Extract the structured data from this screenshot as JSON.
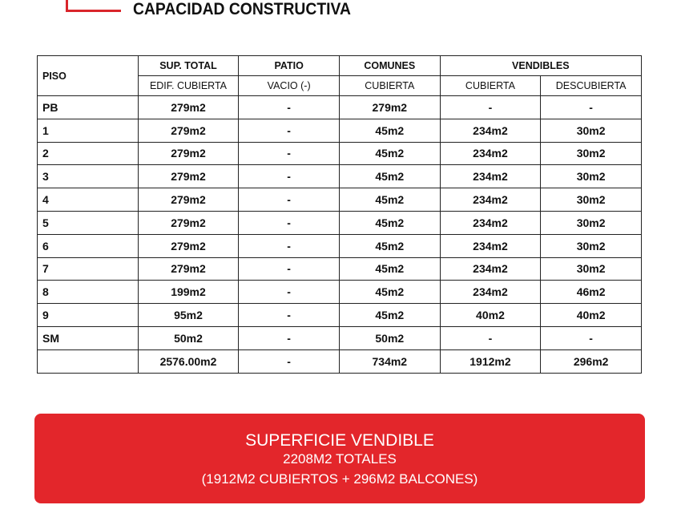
{
  "title": "CAPACIDAD CONSTRUCTIVA",
  "table": {
    "headers": {
      "piso": "PISO",
      "sup_total": "SUP. TOTAL",
      "patio": "PATIO",
      "comunes": "COMUNES",
      "vendibles": "VENDIBLES"
    },
    "subheaders": {
      "edif_cubierta": "EDIF. CUBIERTA",
      "vacio": "VACIO (-)",
      "comunes_cubierta": "CUBIERTA",
      "vend_cubierta": "CUBIERTA",
      "vend_descubierta": "DESCUBIERTA"
    },
    "rows": [
      [
        "PB",
        "279m2",
        "-",
        "279m2",
        "-",
        "-"
      ],
      [
        "1",
        "279m2",
        "-",
        "45m2",
        "234m2",
        "30m2"
      ],
      [
        "2",
        "279m2",
        "-",
        "45m2",
        "234m2",
        "30m2"
      ],
      [
        "3",
        "279m2",
        "-",
        "45m2",
        "234m2",
        "30m2"
      ],
      [
        "4",
        "279m2",
        "-",
        "45m2",
        "234m2",
        "30m2"
      ],
      [
        "5",
        "279m2",
        "-",
        "45m2",
        "234m2",
        "30m2"
      ],
      [
        "6",
        "279m2",
        "-",
        "45m2",
        "234m2",
        "30m2"
      ],
      [
        "7",
        "279m2",
        "-",
        "45m2",
        "234m2",
        "30m2"
      ],
      [
        "8",
        "199m2",
        "-",
        "45m2",
        "234m2",
        "46m2"
      ],
      [
        "9",
        "95m2",
        "-",
        "45m2",
        "40m2",
        "40m2"
      ],
      [
        "SM",
        "50m2",
        "-",
        "50m2",
        "-",
        "-"
      ],
      [
        "",
        "2576.00m2",
        "-",
        "734m2",
        "1912m2",
        "296m2"
      ]
    ]
  },
  "banner": {
    "heading": "SUPERFICIE VENDIBLE",
    "line1": "2208M2 TOTALES",
    "line2": "(1912M2 CUBIERTOS + 296M2 BALCONES)",
    "color": "#e3262b"
  }
}
